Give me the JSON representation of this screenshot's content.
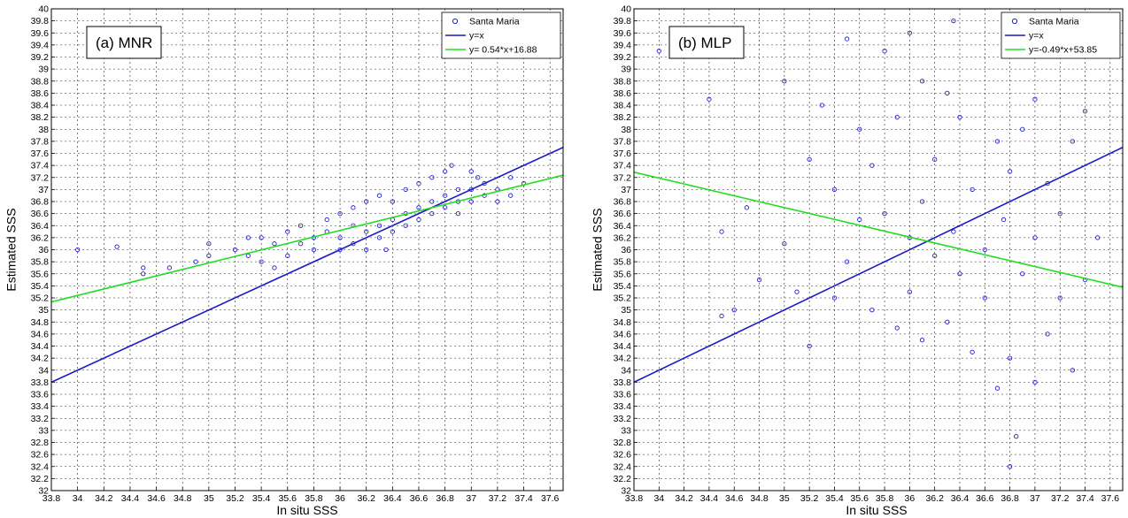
{
  "chart_data": [
    {
      "type": "scatter",
      "panel_label": "(a) MNR",
      "xlabel": "In situ SSS",
      "ylabel": "Estimated SSS",
      "xlim": [
        33.8,
        37.7
      ],
      "ylim": [
        32,
        40
      ],
      "x_ticks": [
        "33.8",
        "34",
        "34.2",
        "34.4",
        "34.6",
        "34.8",
        "35",
        "35.2",
        "35.4",
        "35.6",
        "35.8",
        "36",
        "36.2",
        "36.4",
        "36.6",
        "36.8",
        "37",
        "37.2",
        "37.4",
        "37.6"
      ],
      "y_ticks": [
        "32",
        "32.2",
        "32.4",
        "32.6",
        "32.8",
        "33",
        "33.2",
        "33.4",
        "33.6",
        "33.8",
        "34",
        "34.2",
        "34.4",
        "34.6",
        "34.8",
        "35",
        "35.2",
        "35.4",
        "35.6",
        "35.8",
        "36",
        "36.2",
        "36.4",
        "36.6",
        "36.8",
        "37",
        "37.2",
        "37.4",
        "37.6",
        "37.8",
        "38",
        "38.2",
        "38.4",
        "38.6",
        "38.8",
        "39",
        "39.2",
        "39.4",
        "39.6",
        "39.8",
        "40"
      ],
      "grid": true,
      "legend_position": "top-right",
      "legend": [
        "Santa Maria",
        "y=x",
        "y= 0.54*x+16.88"
      ],
      "colors": {
        "points": "#2020d0",
        "identity": "#1a1ac8",
        "fit": "#22dd22"
      },
      "series": [
        {
          "name": "Santa Maria",
          "kind": "points",
          "x": [
            34.0,
            34.3,
            34.5,
            34.5,
            34.7,
            34.9,
            35.0,
            35.0,
            35.2,
            35.3,
            35.3,
            35.4,
            35.4,
            35.5,
            35.5,
            35.6,
            35.6,
            35.7,
            35.7,
            35.8,
            35.8,
            35.9,
            35.9,
            36.0,
            36.0,
            36.0,
            36.1,
            36.1,
            36.1,
            36.2,
            36.2,
            36.2,
            36.3,
            36.3,
            36.3,
            36.35,
            36.4,
            36.4,
            36.4,
            36.5,
            36.5,
            36.5,
            36.6,
            36.6,
            36.6,
            36.7,
            36.7,
            36.7,
            36.8,
            36.8,
            36.8,
            36.85,
            36.9,
            36.9,
            36.9,
            37.0,
            37.0,
            37.0,
            37.05,
            37.1,
            37.1,
            37.2,
            37.2,
            37.3,
            37.3,
            37.4
          ],
          "y": [
            36.0,
            36.05,
            35.6,
            35.7,
            35.7,
            35.8,
            35.9,
            36.1,
            36.0,
            35.9,
            36.2,
            35.8,
            36.2,
            35.7,
            36.1,
            35.9,
            36.3,
            36.1,
            36.4,
            36.2,
            36.0,
            36.3,
            36.5,
            36.2,
            36.0,
            36.6,
            36.1,
            36.4,
            36.7,
            36.3,
            36.0,
            36.8,
            36.4,
            36.2,
            36.9,
            36.0,
            36.5,
            36.3,
            36.8,
            36.6,
            36.4,
            37.0,
            36.5,
            36.7,
            37.1,
            36.6,
            36.8,
            37.2,
            36.7,
            36.9,
            37.3,
            37.4,
            36.8,
            37.0,
            36.6,
            37.0,
            36.8,
            37.3,
            37.2,
            36.9,
            37.1,
            36.8,
            37.0,
            36.9,
            37.2,
            37.1
          ]
        },
        {
          "name": "y=x",
          "kind": "line",
          "x": [
            33.8,
            37.7
          ],
          "y": [
            33.8,
            37.7
          ]
        },
        {
          "name": "y= 0.54*x+16.88",
          "kind": "line",
          "x": [
            33.8,
            37.7
          ],
          "y": [
            35.132,
            37.238
          ]
        }
      ]
    },
    {
      "type": "scatter",
      "panel_label": "(b) MLP",
      "xlabel": "In situ SSS",
      "ylabel": "Estimated SSS",
      "xlim": [
        33.8,
        37.7
      ],
      "ylim": [
        32,
        40
      ],
      "x_ticks": [
        "33.8",
        "34",
        "34.2",
        "34.4",
        "34.6",
        "34.8",
        "35",
        "35.2",
        "35.4",
        "35.6",
        "35.8",
        "36",
        "36.2",
        "36.4",
        "36.6",
        "36.8",
        "37",
        "37.2",
        "37.4",
        "37.6"
      ],
      "y_ticks": [
        "32",
        "32.2",
        "32.4",
        "32.6",
        "32.8",
        "33",
        "33.2",
        "33.4",
        "33.6",
        "33.8",
        "34",
        "34.2",
        "34.4",
        "34.6",
        "34.8",
        "35",
        "35.2",
        "35.4",
        "35.6",
        "35.8",
        "36",
        "36.2",
        "36.4",
        "36.6",
        "36.8",
        "37",
        "37.2",
        "37.4",
        "37.6",
        "37.8",
        "38",
        "38.2",
        "38.4",
        "38.6",
        "38.8",
        "39",
        "39.2",
        "39.4",
        "39.6",
        "39.8",
        "40"
      ],
      "grid": true,
      "legend_position": "top-right",
      "legend": [
        "Santa Maria",
        "y=x",
        "y=-0.49*x+53.85"
      ],
      "colors": {
        "points": "#2020d0",
        "identity": "#1a1ac8",
        "fit": "#22dd22"
      },
      "series": [
        {
          "name": "Santa Maria",
          "kind": "points",
          "x": [
            34.0,
            34.4,
            34.5,
            34.5,
            34.6,
            34.7,
            34.8,
            35.0,
            35.0,
            35.1,
            35.2,
            35.2,
            35.3,
            35.4,
            35.4,
            35.5,
            35.5,
            35.6,
            35.6,
            35.7,
            35.7,
            35.8,
            35.8,
            35.9,
            35.9,
            36.0,
            36.0,
            36.0,
            36.1,
            36.1,
            36.1,
            36.2,
            36.2,
            36.3,
            36.3,
            36.35,
            36.35,
            36.4,
            36.4,
            36.5,
            36.5,
            36.6,
            36.6,
            36.7,
            36.7,
            36.75,
            36.8,
            36.8,
            36.8,
            36.85,
            36.9,
            36.9,
            37.0,
            37.0,
            37.0,
            37.1,
            37.1,
            37.2,
            37.2,
            37.3,
            37.3,
            37.4,
            37.4,
            37.5
          ],
          "y": [
            39.3,
            38.5,
            34.9,
            36.3,
            35.0,
            36.7,
            35.5,
            38.8,
            36.1,
            35.3,
            37.5,
            34.4,
            38.4,
            35.2,
            37.0,
            39.5,
            35.8,
            38.0,
            36.5,
            35.0,
            37.4,
            39.3,
            36.6,
            38.2,
            34.7,
            39.6,
            36.2,
            35.3,
            38.8,
            36.8,
            34.5,
            37.5,
            35.9,
            38.6,
            34.8,
            39.8,
            36.3,
            35.6,
            38.2,
            37.0,
            34.3,
            36.0,
            35.2,
            37.8,
            33.7,
            36.5,
            32.4,
            34.2,
            37.3,
            32.9,
            35.6,
            38.0,
            33.8,
            36.2,
            38.5,
            34.6,
            37.1,
            35.2,
            36.6,
            34.0,
            37.8,
            35.5,
            38.3,
            36.2
          ]
        },
        {
          "name": "y=x",
          "kind": "line",
          "x": [
            33.8,
            37.7
          ],
          "y": [
            33.8,
            37.7
          ]
        },
        {
          "name": "y=-0.49*x+53.85",
          "kind": "line",
          "x": [
            33.8,
            37.7
          ],
          "y": [
            37.288,
            35.377
          ]
        }
      ]
    }
  ]
}
